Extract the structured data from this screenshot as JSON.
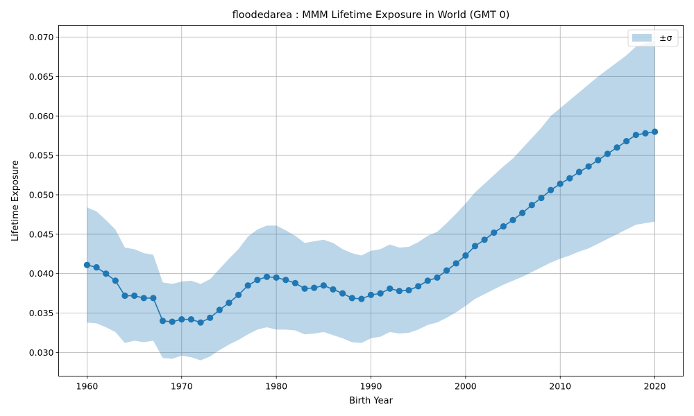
{
  "chart_data": {
    "type": "line",
    "title": "floodedarea : MMM Lifetime Exposure in World (GMT 0)",
    "xlabel": "Birth Year",
    "ylabel": "Lifetime Exposure",
    "xlim": [
      1957,
      2023
    ],
    "ylim": [
      0.027,
      0.0715
    ],
    "xticks": [
      1960,
      1970,
      1980,
      1990,
      2000,
      2010,
      2020
    ],
    "yticks": [
      0.03,
      0.035,
      0.04,
      0.045,
      0.05,
      0.055,
      0.06,
      0.065,
      0.07
    ],
    "grid": true,
    "legend": {
      "position": "top-right",
      "entries": [
        "±σ"
      ]
    },
    "colors": {
      "line": "#1f77b4",
      "band": "#1f77b4",
      "grid": "#b0b0b0"
    },
    "x": [
      1960,
      1961,
      1962,
      1963,
      1964,
      1965,
      1966,
      1967,
      1968,
      1969,
      1970,
      1971,
      1972,
      1973,
      1974,
      1975,
      1976,
      1977,
      1978,
      1979,
      1980,
      1981,
      1982,
      1983,
      1984,
      1985,
      1986,
      1987,
      1988,
      1989,
      1990,
      1991,
      1992,
      1993,
      1994,
      1995,
      1996,
      1997,
      1998,
      1999,
      2000,
      2001,
      2002,
      2003,
      2004,
      2005,
      2006,
      2007,
      2008,
      2009,
      2010,
      2011,
      2012,
      2013,
      2014,
      2015,
      2016,
      2017,
      2018,
      2019,
      2020
    ],
    "series": [
      {
        "values": [
          0.0411,
          0.0408,
          0.04,
          0.0391,
          0.0372,
          0.0372,
          0.0369,
          0.0369,
          0.034,
          0.0339,
          0.0342,
          0.0342,
          0.0338,
          0.0344,
          0.0354,
          0.0363,
          0.0373,
          0.0385,
          0.0392,
          0.0396,
          0.0395,
          0.0392,
          0.0388,
          0.0381,
          0.0382,
          0.0385,
          0.038,
          0.0375,
          0.0369,
          0.0368,
          0.0373,
          0.0375,
          0.0381,
          0.0378,
          0.0379,
          0.0384,
          0.0391,
          0.0395,
          0.0404,
          0.0413,
          0.0423,
          0.0435,
          0.0443,
          0.0452,
          0.046,
          0.0468,
          0.0477,
          0.0487,
          0.0496,
          0.0506,
          0.0514,
          0.0521,
          0.0529,
          0.0536,
          0.0544,
          0.0552,
          0.056,
          0.0568,
          0.0576,
          0.0578,
          0.058
        ]
      }
    ],
    "band": {
      "name": "±σ",
      "upper": [
        0.0484,
        0.0479,
        0.0468,
        0.0456,
        0.0433,
        0.0431,
        0.0426,
        0.0424,
        0.0389,
        0.0387,
        0.039,
        0.0391,
        0.0387,
        0.0393,
        0.0406,
        0.0419,
        0.0431,
        0.0447,
        0.0456,
        0.0461,
        0.0461,
        0.0455,
        0.0448,
        0.0439,
        0.0441,
        0.0443,
        0.0439,
        0.0431,
        0.0426,
        0.0423,
        0.0429,
        0.0431,
        0.0437,
        0.0433,
        0.0434,
        0.044,
        0.0448,
        0.0453,
        0.0464,
        0.0476,
        0.0489,
        0.0503,
        0.0514,
        0.0525,
        0.0536,
        0.0546,
        0.0559,
        0.0572,
        0.0585,
        0.06,
        0.061,
        0.062,
        0.063,
        0.064,
        0.065,
        0.0659,
        0.0668,
        0.0677,
        0.0688,
        0.0692,
        0.0695
      ],
      "lower": [
        0.0338,
        0.0337,
        0.0332,
        0.0326,
        0.0312,
        0.0315,
        0.0313,
        0.0315,
        0.0293,
        0.0292,
        0.0296,
        0.0294,
        0.029,
        0.0295,
        0.0303,
        0.031,
        0.0316,
        0.0323,
        0.0329,
        0.0332,
        0.0329,
        0.0329,
        0.0328,
        0.0323,
        0.0324,
        0.0326,
        0.0322,
        0.0318,
        0.0313,
        0.0312,
        0.0318,
        0.032,
        0.0326,
        0.0324,
        0.0325,
        0.0329,
        0.0335,
        0.0338,
        0.0344,
        0.0351,
        0.0359,
        0.0368,
        0.0374,
        0.038,
        0.0386,
        0.0391,
        0.0396,
        0.0402,
        0.0408,
        0.0414,
        0.0419,
        0.0423,
        0.0428,
        0.0432,
        0.0438,
        0.0444,
        0.045,
        0.0456,
        0.0462,
        0.0464,
        0.0466
      ]
    }
  }
}
